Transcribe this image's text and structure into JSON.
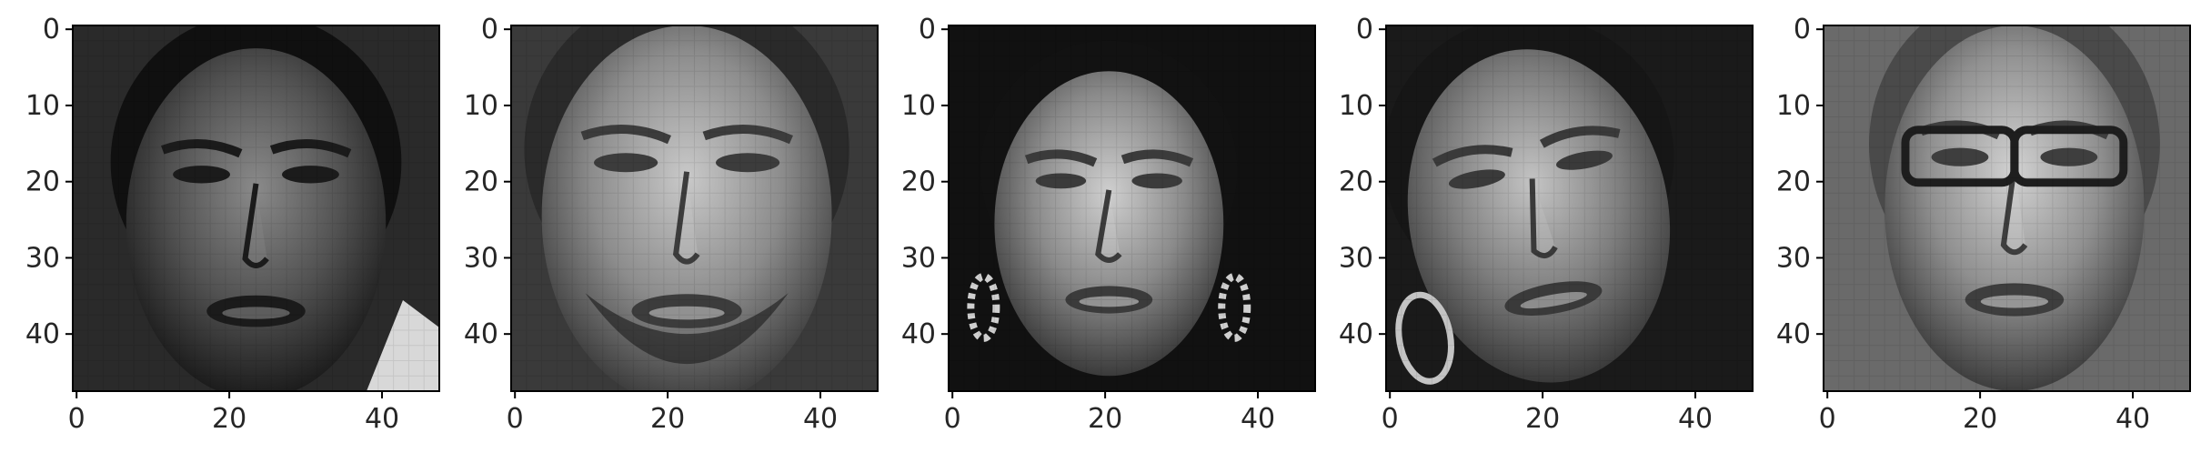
{
  "figure": {
    "background": "#ffffff",
    "axis_color": "#000000",
    "tick_label_color": "#262626"
  },
  "panels": [
    {
      "subject": "grayscale face, male, furrowed brow, dark image",
      "palette": {
        "bg": "#2a2a2a",
        "skin": "#525252",
        "shadow": "#1b1b1b",
        "highlight": "#8a8a8a",
        "hair": "#101010"
      },
      "accent": "bright-patch-lower-right"
    },
    {
      "subject": "grayscale face, male, mouth open, beard",
      "palette": {
        "bg": "#3a3a3a",
        "skin": "#8c8c8c",
        "shadow": "#3c3c3c",
        "highlight": "#c9c9c9",
        "hair": "#2a2a2a"
      },
      "accent": "beard"
    },
    {
      "subject": "grayscale face, female, eyes closed, earrings",
      "palette": {
        "bg": "#111111",
        "skin": "#8a8a8a",
        "shadow": "#3b3b3b",
        "highlight": "#cfcfcf",
        "hair": "#121212"
      },
      "accent": "earrings"
    },
    {
      "subject": "grayscale face, female, tilted, eyes squeezed shut, hoop earring",
      "palette": {
        "bg": "#1a1a1a",
        "skin": "#7f7f7f",
        "shadow": "#3a3a3a",
        "highlight": "#c4c4c4",
        "hair": "#161616"
      },
      "accent": "hoop-earring"
    },
    {
      "subject": "grayscale face, female, glasses, mouth open",
      "palette": {
        "bg": "#6a6a6a",
        "skin": "#909090",
        "shadow": "#3e3e3e",
        "highlight": "#d2d2d2",
        "hair": "#4a4a4a"
      },
      "accent": "glasses"
    }
  ],
  "axes": {
    "x_ticks": [
      {
        "value": 0,
        "label": "0"
      },
      {
        "value": 20,
        "label": "20"
      },
      {
        "value": 40,
        "label": "40"
      }
    ],
    "y_ticks": [
      {
        "value": 0,
        "label": "0"
      },
      {
        "value": 10,
        "label": "10"
      },
      {
        "value": 20,
        "label": "20"
      },
      {
        "value": 30,
        "label": "30"
      },
      {
        "value": 40,
        "label": "40"
      }
    ],
    "image_size": [
      48,
      48
    ]
  }
}
